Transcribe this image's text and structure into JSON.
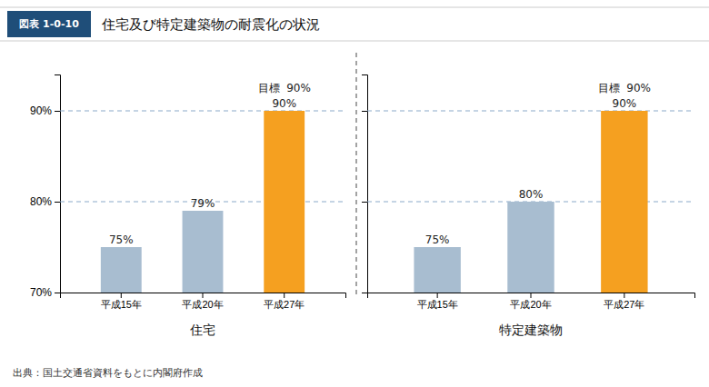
{
  "chart_data": [
    {
      "type": "bar",
      "title": "住宅及び特定建築物の耐震化の状況",
      "figure_label": "図表 1-0-10",
      "footnote": "出典：国土交通省資料をもとに内閣府作成",
      "x_label": "住宅",
      "categories": [
        "平成15年",
        "平成20年",
        "平成27年"
      ],
      "values": [
        75,
        79,
        90
      ],
      "value_labels": [
        "75%",
        "79%",
        "90%"
      ],
      "data_labels": true,
      "colors": [
        "#a8bdd0",
        "#a8bdd0",
        "#f5a020"
      ],
      "ylim": [
        70,
        94
      ],
      "yticks": [
        {
          "value": 70,
          "label": "70%"
        },
        {
          "value": 80,
          "label": "80%"
        },
        {
          "value": 90,
          "label": "90%"
        }
      ],
      "reference_lines": [
        80,
        90
      ],
      "annotations": [
        {
          "text": "目標  90%",
          "category": "平成27年",
          "value": 90
        }
      ],
      "grid": false
    },
    {
      "type": "bar",
      "x_label": "特定建築物",
      "categories": [
        "平成15年",
        "平成20年",
        "平成27年"
      ],
      "values": [
        75,
        80,
        90
      ],
      "value_labels": [
        "75%",
        "80%",
        "90%"
      ],
      "data_labels": true,
      "colors": [
        "#a8bdd0",
        "#a8bdd0",
        "#f5a020"
      ],
      "ylim": [
        70,
        94
      ],
      "yticks": [
        70,
        80,
        90
      ],
      "tick_labels": "x",
      "reference_lines": [
        80,
        90
      ],
      "annotations": [
        {
          "text": "目標  90%",
          "category": "平成27年",
          "value": 90
        }
      ],
      "grid": false
    }
  ]
}
